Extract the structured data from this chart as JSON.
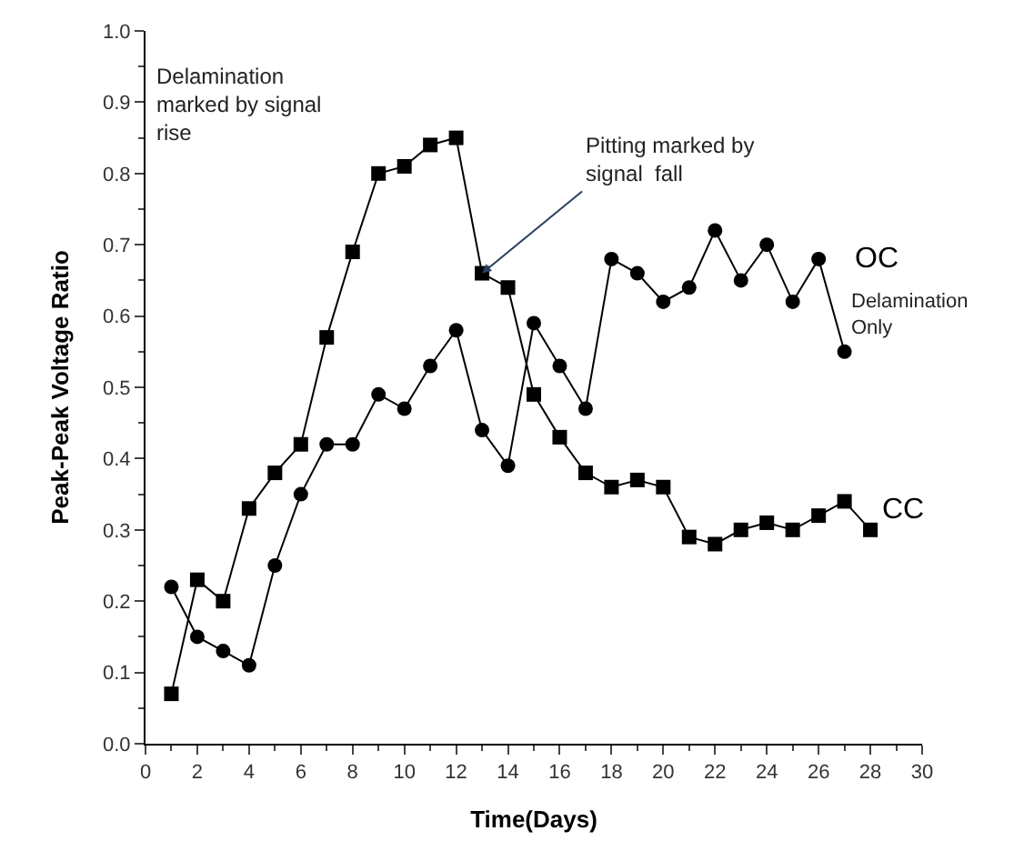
{
  "chart_data": {
    "type": "line",
    "xlabel": "Time(Days)",
    "ylabel": "Peak-Peak Voltage Ratio",
    "xlim": [
      0,
      30
    ],
    "xticks": [
      0,
      2,
      4,
      6,
      8,
      10,
      12,
      14,
      16,
      18,
      20,
      22,
      24,
      26,
      28,
      30
    ],
    "ylim": [
      0,
      1
    ],
    "yticks": [
      {
        "value": 0,
        "label": "0.0"
      },
      0.1,
      0.2,
      0.3,
      0.4,
      0.5,
      0.6,
      0.7,
      0.8,
      0.9,
      {
        "value": 1,
        "label": "1.0"
      }
    ],
    "legend": false,
    "series": [
      {
        "name": "CC",
        "color": "#000000",
        "marker": "square",
        "x": [
          1,
          2,
          3,
          4,
          5,
          6,
          7,
          8,
          9,
          10,
          11,
          12,
          13,
          14,
          15,
          16,
          17,
          18,
          19,
          20,
          21,
          22,
          23,
          24,
          25,
          26,
          27,
          28
        ],
        "values": [
          0.07,
          0.23,
          0.2,
          0.33,
          0.38,
          0.42,
          0.57,
          0.69,
          0.8,
          0.81,
          0.84,
          0.85,
          0.66,
          0.64,
          0.49,
          0.43,
          0.38,
          0.36,
          0.37,
          0.36,
          0.29,
          0.28,
          0.3,
          0.31,
          0.3,
          0.32,
          0.34,
          0.3
        ]
      },
      {
        "name": "OC",
        "color": "#000000",
        "marker": "circle",
        "x": [
          1,
          2,
          3,
          4,
          5,
          6,
          7,
          8,
          9,
          10,
          11,
          12,
          13,
          14,
          15,
          16,
          17,
          18,
          19,
          20,
          21,
          22,
          23,
          24,
          25,
          26,
          27
        ],
        "values": [
          0.22,
          0.15,
          0.13,
          0.11,
          0.25,
          0.35,
          0.42,
          0.42,
          0.49,
          0.47,
          0.53,
          0.58,
          0.44,
          0.39,
          0.59,
          0.53,
          0.47,
          0.68,
          0.66,
          0.62,
          0.64,
          0.72,
          0.65,
          0.7,
          0.62,
          0.68,
          0.55
        ]
      }
    ],
    "annotations": [
      "Delamination\nmarked by signal\nrise",
      {
        "text": "Pitting marked by\nsignal  fall",
        "x": 13,
        "y": 0.66
      },
      "Delamination\nOnly"
    ]
  }
}
